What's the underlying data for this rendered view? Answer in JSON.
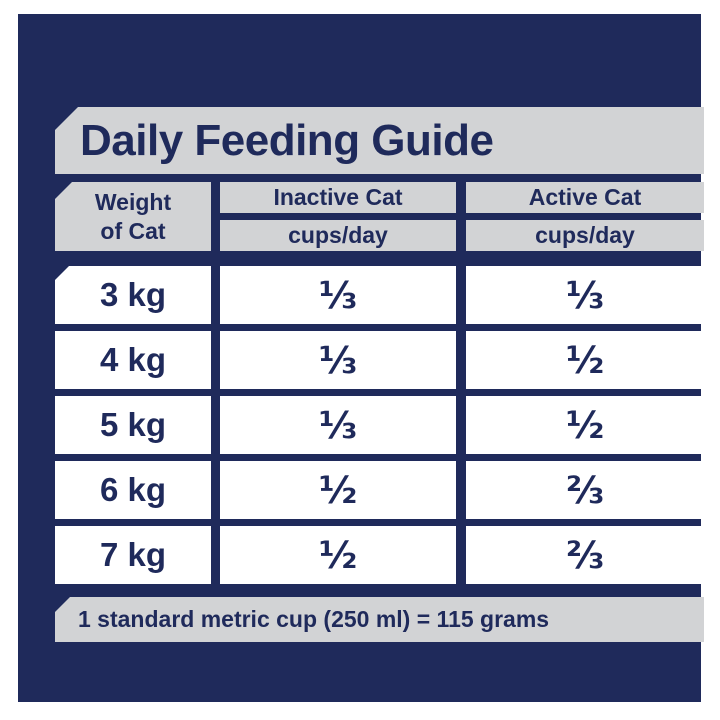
{
  "title": "Daily Feeding Guide",
  "table": {
    "weight_header_line1": "Weight",
    "weight_header_line2": "of Cat",
    "columns": [
      {
        "label": "Inactive Cat",
        "unit": "cups/day"
      },
      {
        "label": "Active Cat",
        "unit": "cups/day"
      }
    ],
    "rows": [
      {
        "weight": "3 kg",
        "inactive": "⅓",
        "active": "⅓"
      },
      {
        "weight": "4 kg",
        "inactive": "⅓",
        "active": "½"
      },
      {
        "weight": "5 kg",
        "inactive": "⅓",
        "active": "½"
      },
      {
        "weight": "6 kg",
        "inactive": "½",
        "active": "⅔"
      },
      {
        "weight": "7 kg",
        "inactive": "½",
        "active": "⅔"
      }
    ]
  },
  "footnote": "1 standard metric cup (250 ml) = 115 grams",
  "colors": {
    "navy": "#1f2a5b",
    "bar_gray": "#d2d3d5",
    "cell_white": "#ffffff"
  },
  "chart_data": {
    "type": "table",
    "title": "Daily Feeding Guide",
    "columns": [
      "Weight of Cat",
      "Inactive Cat (cups/day)",
      "Active Cat (cups/day)"
    ],
    "rows": [
      [
        "3 kg",
        "1/3",
        "1/3"
      ],
      [
        "4 kg",
        "1/3",
        "1/2"
      ],
      [
        "5 kg",
        "1/3",
        "1/2"
      ],
      [
        "6 kg",
        "1/2",
        "2/3"
      ],
      [
        "7 kg",
        "1/2",
        "2/3"
      ]
    ],
    "footnote": "1 standard metric cup (250 ml) = 115 grams",
    "layout": "navy panel, gray header bars with notched top-left corners, white data cells"
  }
}
